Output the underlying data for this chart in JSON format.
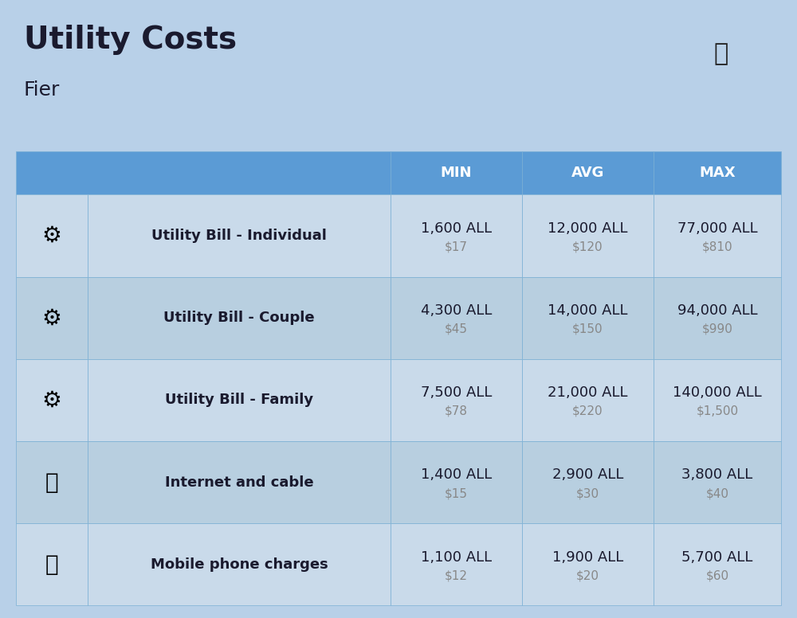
{
  "title": "Utility Costs",
  "subtitle": "Fier",
  "bg_color": "#b8d0e8",
  "header_bg": "#5b9bd5",
  "header_text_color": "#ffffff",
  "row_bg_light": "#c9daea",
  "row_bg_dark": "#b8cfe0",
  "cell_border_color": "#7aafd4",
  "col_headers": [
    "MIN",
    "AVG",
    "MAX"
  ],
  "rows": [
    {
      "label": "Utility Bill - Individual",
      "min_all": "1,600 ALL",
      "min_usd": "$17",
      "avg_all": "12,000 ALL",
      "avg_usd": "$120",
      "max_all": "77,000 ALL",
      "max_usd": "$810"
    },
    {
      "label": "Utility Bill - Couple",
      "min_all": "4,300 ALL",
      "min_usd": "$45",
      "avg_all": "14,000 ALL",
      "avg_usd": "$150",
      "max_all": "94,000 ALL",
      "max_usd": "$990"
    },
    {
      "label": "Utility Bill - Family",
      "min_all": "7,500 ALL",
      "min_usd": "$78",
      "avg_all": "21,000 ALL",
      "avg_usd": "$220",
      "max_all": "140,000 ALL",
      "max_usd": "$1,500"
    },
    {
      "label": "Internet and cable",
      "min_all": "1,400 ALL",
      "min_usd": "$15",
      "avg_all": "2,900 ALL",
      "avg_usd": "$30",
      "max_all": "3,800 ALL",
      "max_usd": "$40"
    },
    {
      "label": "Mobile phone charges",
      "min_all": "1,100 ALL",
      "min_usd": "$12",
      "avg_all": "1,900 ALL",
      "avg_usd": "$20",
      "max_all": "5,700 ALL",
      "max_usd": "$60"
    }
  ],
  "flag_color_red": "#ee3333",
  "flag_color_black": "#222222",
  "main_text_color": "#1a1a2e",
  "secondary_text_color": "#888888",
  "label_fontsize": 13,
  "value_fontsize": 13,
  "usd_fontsize": 11,
  "header_fontsize": 13
}
